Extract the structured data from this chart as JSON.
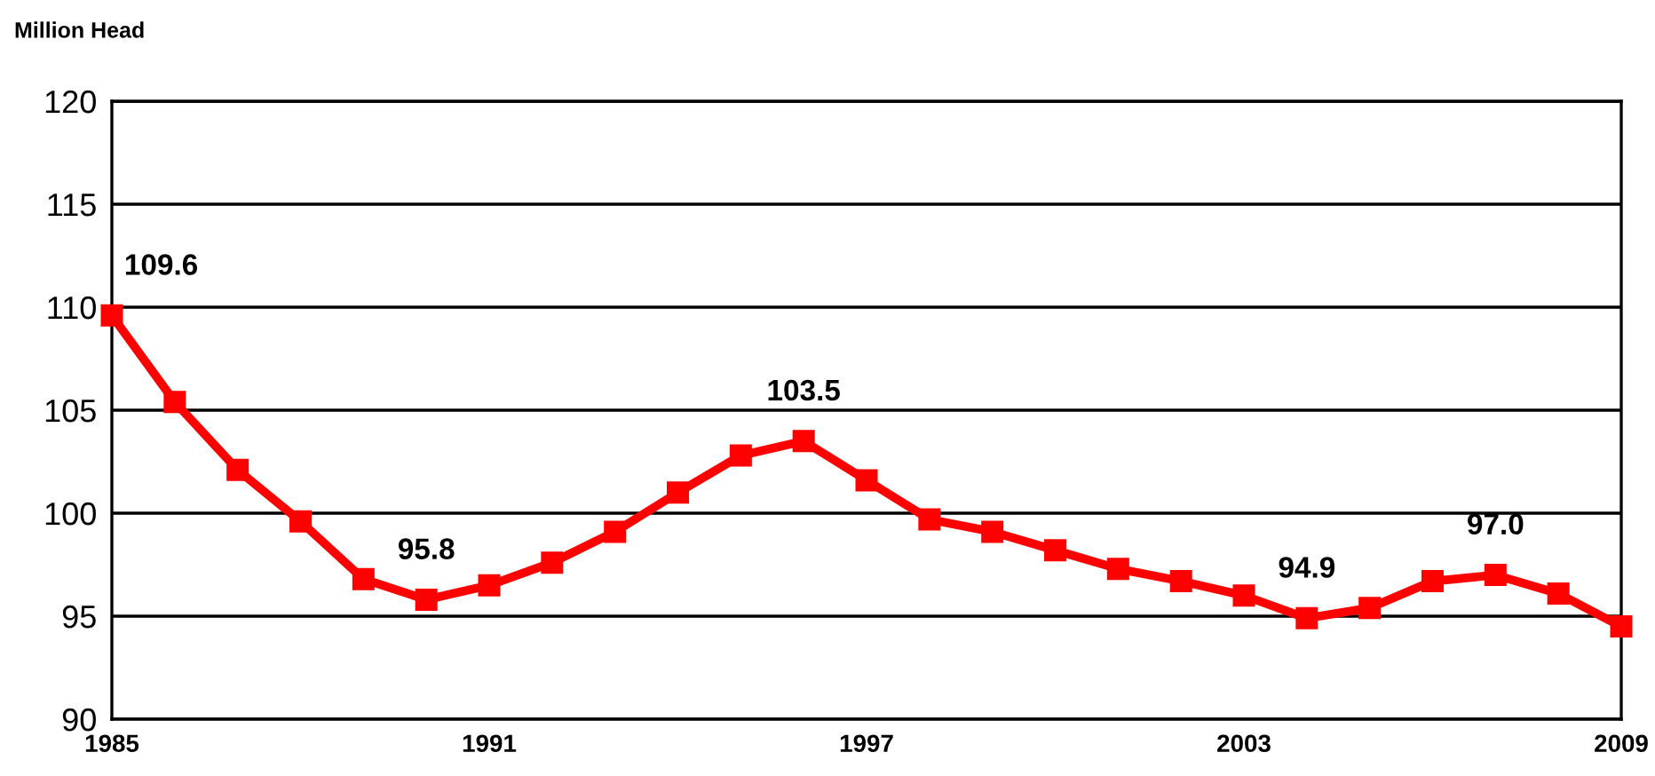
{
  "chart_data": {
    "type": "line",
    "ylabel": "Million Head",
    "x": [
      1985,
      1986,
      1987,
      1988,
      1989,
      1990,
      1991,
      1992,
      1993,
      1994,
      1995,
      1996,
      1997,
      1998,
      1999,
      2000,
      2001,
      2002,
      2003,
      2004,
      2005,
      2006,
      2007,
      2008,
      2009
    ],
    "series": [
      {
        "color": "#ff0000",
        "values": [
          109.6,
          105.4,
          102.1,
          99.6,
          96.8,
          95.8,
          96.5,
          97.6,
          99.1,
          101.0,
          102.8,
          103.5,
          101.6,
          99.7,
          99.1,
          98.2,
          97.3,
          96.7,
          96.0,
          94.9,
          95.4,
          96.7,
          97.0,
          96.1,
          94.5
        ],
        "value_labels": [
          "109.6",
          null,
          null,
          null,
          null,
          "95.8",
          null,
          null,
          null,
          null,
          null,
          "103.5",
          null,
          null,
          null,
          null,
          null,
          null,
          null,
          "94.9",
          null,
          null,
          "97.0",
          null,
          null
        ]
      }
    ],
    "xlim": [
      1985,
      2009
    ],
    "xticks": [
      1985,
      1991,
      1997,
      2003,
      2009
    ],
    "ylim": [
      90,
      120
    ],
    "yticks": [
      90,
      95,
      100,
      105,
      110,
      115,
      120
    ],
    "grid": "y",
    "marker": "square",
    "line_style": "solid",
    "legend": false
  }
}
